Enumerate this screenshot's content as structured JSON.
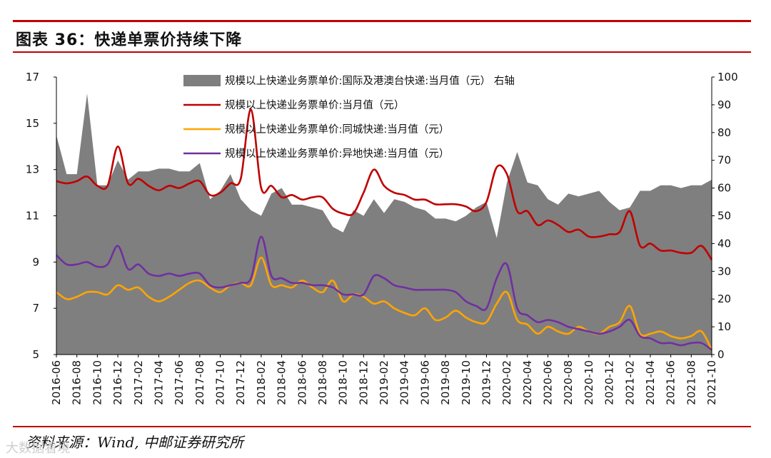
{
  "header": {
    "title": "图表 36：快递单票价持续下降"
  },
  "footer": {
    "source": "资料来源：Wind, 中邮证券研究所",
    "watermark": "大数据看境"
  },
  "colors": {
    "accent": "#c00000",
    "area": "#7f7f7f",
    "line_total": "#c00000",
    "line_same_city": "#ffa500",
    "line_inter_city": "#7030a0"
  },
  "chart_data": {
    "type": "line",
    "title": "",
    "xlabel": "",
    "ylabel": "",
    "ylim": [
      5,
      17
    ],
    "y2lim": [
      0,
      100
    ],
    "y_ticks": [
      "5",
      "7",
      "9",
      "11",
      "13",
      "15",
      "17"
    ],
    "y2_ticks": [
      "0",
      "10",
      "20",
      "30",
      "40",
      "50",
      "60",
      "70",
      "80",
      "90",
      "100"
    ],
    "x_tick_labels": [
      "2016-06",
      "2016-08",
      "2016-10",
      "2016-12",
      "2017-02",
      "2017-04",
      "2017-06",
      "2017-08",
      "2017-10",
      "2017-12",
      "2018-02",
      "2018-04",
      "2018-06",
      "2018-08",
      "2018-10",
      "2018-12",
      "2019-02",
      "2019-04",
      "2019-06",
      "2019-08",
      "2019-10",
      "2019-12",
      "2020-02",
      "2020-04",
      "2020-06",
      "2020-08",
      "2020-10",
      "2020-12",
      "2021-02",
      "2021-04",
      "2021-06",
      "2021-08",
      "2021-10"
    ],
    "grid": false,
    "legend_position": "top",
    "x": [
      "2016-06",
      "2016-07",
      "2016-08",
      "2016-09",
      "2016-10",
      "2016-11",
      "2016-12",
      "2017-01",
      "2017-02",
      "2017-03",
      "2017-04",
      "2017-05",
      "2017-06",
      "2017-07",
      "2017-08",
      "2017-09",
      "2017-10",
      "2017-11",
      "2017-12",
      "2018-01",
      "2018-02",
      "2018-03",
      "2018-04",
      "2018-05",
      "2018-06",
      "2018-07",
      "2018-08",
      "2018-09",
      "2018-10",
      "2018-11",
      "2018-12",
      "2019-01",
      "2019-02",
      "2019-03",
      "2019-04",
      "2019-05",
      "2019-06",
      "2019-07",
      "2019-08",
      "2019-09",
      "2019-10",
      "2019-11",
      "2019-12",
      "2020-01",
      "2020-02",
      "2020-03",
      "2020-04",
      "2020-05",
      "2020-06",
      "2020-07",
      "2020-08",
      "2020-09",
      "2020-10",
      "2020-11",
      "2020-12",
      "2021-01",
      "2021-02",
      "2021-03",
      "2021-04",
      "2021-05",
      "2021-06",
      "2021-07",
      "2021-08",
      "2021-09",
      "2021-10"
    ],
    "series": [
      {
        "name": "规模以上快递业务票单价:国际及港澳台快递:当月值（元） 右轴",
        "type": "area",
        "axis": "right",
        "color": "#7f7f7f",
        "values": [
          79,
          65,
          65,
          94,
          61,
          61,
          70,
          63,
          66,
          66,
          67,
          67,
          66,
          66,
          69,
          56,
          59,
          65,
          56,
          52,
          50,
          58,
          60,
          54,
          54,
          53,
          52,
          46,
          44,
          52,
          50,
          56,
          51,
          56,
          55,
          53,
          52,
          49,
          49,
          48,
          50,
          53,
          55,
          42,
          62,
          73,
          62,
          61,
          56,
          54,
          58,
          57,
          58,
          59,
          55,
          52,
          53,
          59,
          59,
          61,
          61,
          60,
          61,
          61,
          63
        ]
      },
      {
        "name": "规模以上快递业务票单价:当月值（元）",
        "type": "line",
        "axis": "left",
        "color": "#c00000",
        "values": [
          12.5,
          12.4,
          12.5,
          12.7,
          12.3,
          12.3,
          14.0,
          12.4,
          12.6,
          12.3,
          12.1,
          12.3,
          12.2,
          12.4,
          12.5,
          11.9,
          12.0,
          12.4,
          12.6,
          15.6,
          12.2,
          12.3,
          11.8,
          11.9,
          11.7,
          11.8,
          11.8,
          11.3,
          11.1,
          11.1,
          12.0,
          13.0,
          12.3,
          12.0,
          11.9,
          11.7,
          11.7,
          11.5,
          11.5,
          11.5,
          11.4,
          11.2,
          11.6,
          13.1,
          12.8,
          11.2,
          11.2,
          10.6,
          10.8,
          10.6,
          10.3,
          10.4,
          10.1,
          10.1,
          10.2,
          10.3,
          11.2,
          9.7,
          9.8,
          9.5,
          9.5,
          9.4,
          9.4,
          9.7,
          9.1
        ]
      },
      {
        "name": "规模以上快递业务票单价:同城快递:当月值（元）",
        "type": "line",
        "axis": "left",
        "color": "#ffa500",
        "values": [
          7.7,
          7.4,
          7.5,
          7.7,
          7.7,
          7.6,
          8.0,
          7.8,
          7.9,
          7.5,
          7.3,
          7.5,
          7.8,
          8.1,
          8.2,
          7.9,
          7.7,
          8.0,
          8.1,
          8.0,
          9.2,
          8.0,
          8.0,
          7.9,
          8.2,
          7.9,
          7.7,
          8.2,
          7.3,
          7.6,
          7.5,
          7.2,
          7.3,
          7.0,
          6.8,
          6.7,
          7.0,
          6.5,
          6.6,
          6.9,
          6.6,
          6.4,
          6.4,
          7.2,
          7.7,
          6.5,
          6.3,
          5.9,
          6.2,
          6.0,
          5.9,
          6.2,
          6.0,
          5.9,
          6.2,
          6.4,
          7.1,
          5.9,
          5.9,
          6.0,
          5.8,
          5.7,
          5.8,
          6.0,
          5.2
        ]
      },
      {
        "name": "规模以上快递业务票单价:异地快递:当月值（元）",
        "type": "line",
        "axis": "left",
        "color": "#7030a0",
        "values": [
          9.3,
          8.9,
          8.9,
          9.0,
          8.8,
          8.9,
          9.7,
          8.7,
          8.9,
          8.5,
          8.4,
          8.5,
          8.4,
          8.5,
          8.5,
          8.0,
          7.9,
          8.0,
          8.1,
          8.3,
          10.1,
          8.4,
          8.3,
          8.1,
          8.1,
          8.0,
          8.0,
          7.9,
          7.6,
          7.6,
          7.6,
          8.4,
          8.3,
          8.0,
          7.9,
          7.8,
          7.8,
          7.8,
          7.8,
          7.7,
          7.3,
          7.1,
          7.0,
          8.3,
          8.9,
          7.0,
          6.7,
          6.4,
          6.5,
          6.4,
          6.2,
          6.1,
          6.0,
          5.9,
          6.0,
          6.2,
          6.5,
          5.8,
          5.7,
          5.5,
          5.5,
          5.4,
          5.5,
          5.5,
          5.2
        ]
      }
    ]
  }
}
